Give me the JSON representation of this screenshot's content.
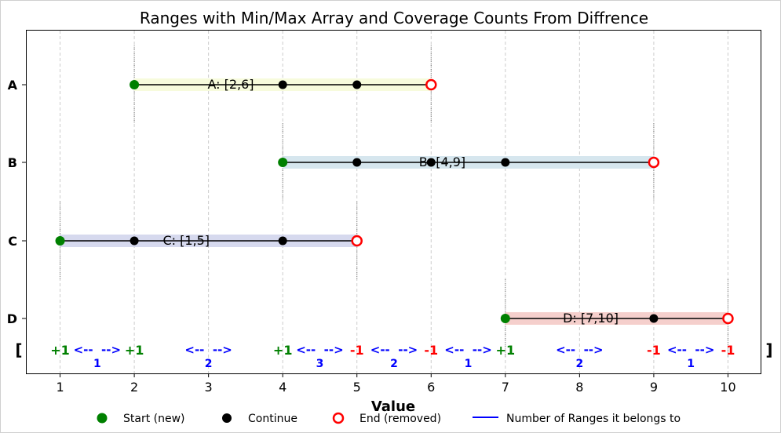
{
  "chart_data": {
    "type": "line",
    "title": "Ranges with Min/Max Array and Coverage Counts From Diffrence",
    "xlabel": "Value",
    "ylabel": "",
    "xlim": [
      0.55,
      10.45
    ],
    "x_ticks": [
      "1",
      "2",
      "3",
      "4",
      "5",
      "6",
      "7",
      "8",
      "9",
      "10"
    ],
    "grid": "vertical dashed",
    "y_categories": [
      "A",
      "B",
      "C",
      "D"
    ],
    "ranges": [
      {
        "name": "A",
        "label": "A: [2,6]",
        "start": 2,
        "end": 6,
        "continue": [
          4,
          5
        ],
        "band_color": "#f7fbdc",
        "label_x": 3.3
      },
      {
        "name": "B",
        "label": "B: [4,9]",
        "start": 4,
        "end": 9,
        "continue": [
          5,
          6,
          7
        ],
        "band_color": "#d6e6ee",
        "label_x": 6.15
      },
      {
        "name": "C",
        "label": "C: [1,5]",
        "start": 1,
        "end": 5,
        "continue": [
          2,
          4
        ],
        "band_color": "#d6d9ee",
        "label_x": 2.7
      },
      {
        "name": "D",
        "label": "D: [7,10]",
        "start": 7,
        "end": 10,
        "continue": [
          9
        ],
        "band_color": "#f5cfcc",
        "label_x": 8.15
      }
    ],
    "diff_row": {
      "open_bracket": "[",
      "close_bracket": "]",
      "markers": [
        {
          "x": 1,
          "text": "+1",
          "kind": "plus"
        },
        {
          "x": 2,
          "text": "+1",
          "kind": "plus"
        },
        {
          "x": 4,
          "text": "+1",
          "kind": "plus"
        },
        {
          "x": 5,
          "text": "-1",
          "kind": "minus"
        },
        {
          "x": 6,
          "text": "-1",
          "kind": "minus"
        },
        {
          "x": 7,
          "text": "+1",
          "kind": "plus"
        },
        {
          "x": 9,
          "text": "-1",
          "kind": "minus"
        },
        {
          "x": 10,
          "text": "-1",
          "kind": "minus"
        }
      ],
      "segments": [
        {
          "from": 1,
          "to": 2,
          "count": "1"
        },
        {
          "from": 2,
          "to": 4,
          "count": "2"
        },
        {
          "from": 4,
          "to": 5,
          "count": "3"
        },
        {
          "from": 5,
          "to": 6,
          "count": "2"
        },
        {
          "from": 6,
          "to": 7,
          "count": "1"
        },
        {
          "from": 7,
          "to": 9,
          "count": "2"
        },
        {
          "from": 9,
          "to": 10,
          "count": "1"
        }
      ],
      "arrow_text": "<--  -->"
    },
    "legend": {
      "placement": "bottom-center",
      "entries": [
        {
          "label": "Start (new)",
          "marker": "filled-green-circle"
        },
        {
          "label": "Continue",
          "marker": "filled-black-circle"
        },
        {
          "label": "End (removed)",
          "marker": "hollow-red-circle"
        },
        {
          "label": "Number of Ranges it belongs to",
          "marker": "blue-line"
        }
      ]
    },
    "colors": {
      "start": "#008000",
      "continue": "#000000",
      "end": "#ff0000",
      "count": "#0000ff",
      "grid": "#cccccc"
    }
  }
}
